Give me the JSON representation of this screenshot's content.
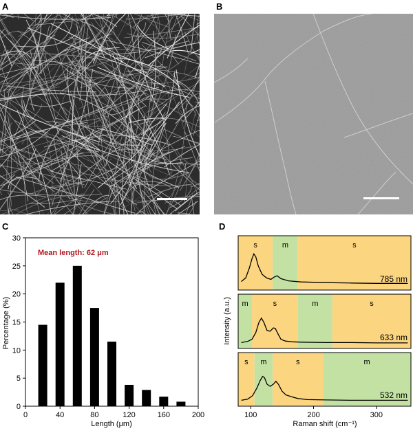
{
  "panels": {
    "a": "A",
    "b": "B",
    "c": "C",
    "d": "D"
  },
  "chart_data": [
    {
      "type": "bar",
      "panel": "C",
      "x": [
        20,
        40,
        60,
        80,
        100,
        120,
        140,
        160,
        180
      ],
      "values": [
        14.5,
        22,
        25,
        17.5,
        11.5,
        3.8,
        2.9,
        1.7,
        0.8
      ],
      "xlabel": "Length (μm)",
      "ylabel": "Percentage (%)",
      "xlim": [
        0,
        200
      ],
      "ylim": [
        0,
        30
      ],
      "xticks": [
        0,
        40,
        80,
        120,
        160,
        200
      ],
      "yticks": [
        0,
        5,
        10,
        15,
        20,
        25,
        30
      ],
      "annotation": "Mean length: 62 μm"
    },
    {
      "type": "line",
      "panel": "D",
      "xlabel": "Raman shift (cm⁻¹)",
      "ylabel": "Intensity (a.u.)",
      "xlim": [
        80,
        355
      ],
      "xticks": [
        100,
        200,
        300
      ],
      "colors": {
        "s": "#fbd580",
        "m": "#c4e1a4"
      },
      "series": [
        {
          "name": "785 nm",
          "regions": [
            {
              "label": "s",
              "from": 80,
              "to": 135
            },
            {
              "label": "m",
              "from": 135,
              "to": 175
            },
            {
              "label": "s",
              "from": 175,
              "to": 355
            }
          ],
          "x": [
            85,
            92,
            98,
            102,
            105,
            108,
            112,
            118,
            125,
            132,
            137,
            142,
            148,
            160,
            180,
            220,
            260,
            300,
            350
          ],
          "y": [
            0.12,
            0.22,
            0.5,
            0.75,
            0.88,
            0.8,
            0.55,
            0.32,
            0.22,
            0.18,
            0.24,
            0.28,
            0.2,
            0.14,
            0.11,
            0.09,
            0.08,
            0.07,
            0.07
          ]
        },
        {
          "name": "633 nm",
          "regions": [
            {
              "label": "m",
              "from": 80,
              "to": 102
            },
            {
              "label": "s",
              "from": 102,
              "to": 175
            },
            {
              "label": "m",
              "from": 175,
              "to": 230
            },
            {
              "label": "s",
              "from": 230,
              "to": 355
            }
          ],
          "x": [
            85,
            95,
            102,
            108,
            113,
            117,
            121,
            126,
            131,
            136,
            139,
            143,
            148,
            155,
            165,
            180,
            220,
            260,
            300,
            350
          ],
          "y": [
            0.05,
            0.08,
            0.14,
            0.32,
            0.6,
            0.72,
            0.6,
            0.38,
            0.36,
            0.45,
            0.44,
            0.3,
            0.14,
            0.09,
            0.07,
            0.06,
            0.05,
            0.05,
            0.04,
            0.04
          ]
        },
        {
          "name": "532 nm",
          "regions": [
            {
              "label": "s",
              "from": 80,
              "to": 106
            },
            {
              "label": "m",
              "from": 106,
              "to": 135
            },
            {
              "label": "s",
              "from": 135,
              "to": 215
            },
            {
              "label": "m",
              "from": 215,
              "to": 355
            }
          ],
          "x": [
            85,
            95,
            103,
            110,
            115,
            119,
            122,
            126,
            131,
            136,
            140,
            144,
            150,
            156,
            165,
            175,
            190,
            220,
            260,
            300,
            350
          ],
          "y": [
            0.05,
            0.08,
            0.18,
            0.4,
            0.6,
            0.72,
            0.68,
            0.5,
            0.44,
            0.5,
            0.58,
            0.5,
            0.3,
            0.2,
            0.15,
            0.1,
            0.07,
            0.06,
            0.05,
            0.05,
            0.05
          ]
        }
      ]
    }
  ]
}
